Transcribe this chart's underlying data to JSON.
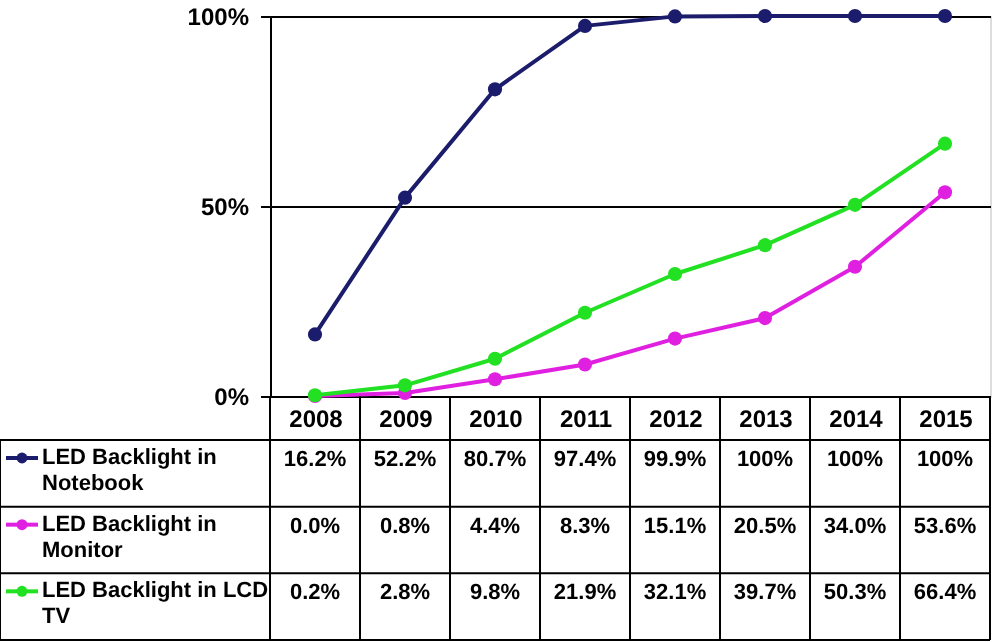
{
  "chart_data": {
    "type": "line",
    "categories": [
      "2008",
      "2009",
      "2010",
      "2011",
      "2012",
      "2013",
      "2014",
      "2015"
    ],
    "series": [
      {
        "name": "LED Backlight in Notebook",
        "color": "#1c1c6c",
        "values": [
          16.2,
          52.2,
          80.7,
          97.4,
          99.9,
          100,
          100,
          100
        ],
        "value_labels": [
          "16.2%",
          "52.2%",
          "80.7%",
          "97.4%",
          "99.9%",
          "100%",
          "100%",
          "100%"
        ]
      },
      {
        "name": "LED Backlight in Monitor",
        "color": "#e020e0",
        "values": [
          0.0,
          0.8,
          4.4,
          8.3,
          15.1,
          20.5,
          34.0,
          53.6
        ],
        "value_labels": [
          "0.0%",
          "0.8%",
          "4.4%",
          "8.3%",
          "15.1%",
          "20.5%",
          "34.0%",
          "53.6%"
        ]
      },
      {
        "name": "LED Backlight in LCD TV",
        "color": "#22e022",
        "values": [
          0.2,
          2.8,
          9.8,
          21.9,
          32.1,
          39.7,
          50.3,
          66.4
        ],
        "value_labels": [
          "0.2%",
          "2.8%",
          "9.8%",
          "21.9%",
          "32.1%",
          "39.7%",
          "50.3%",
          "66.4%"
        ]
      }
    ],
    "ylim": [
      0,
      100
    ],
    "yticks": [
      {
        "value": 0,
        "label": "0%"
      },
      {
        "value": 50,
        "label": "50%"
      },
      {
        "value": 100,
        "label": "100%"
      }
    ],
    "grid": "y",
    "legend": "bottom",
    "marker": "circle",
    "line_style": "solid"
  }
}
